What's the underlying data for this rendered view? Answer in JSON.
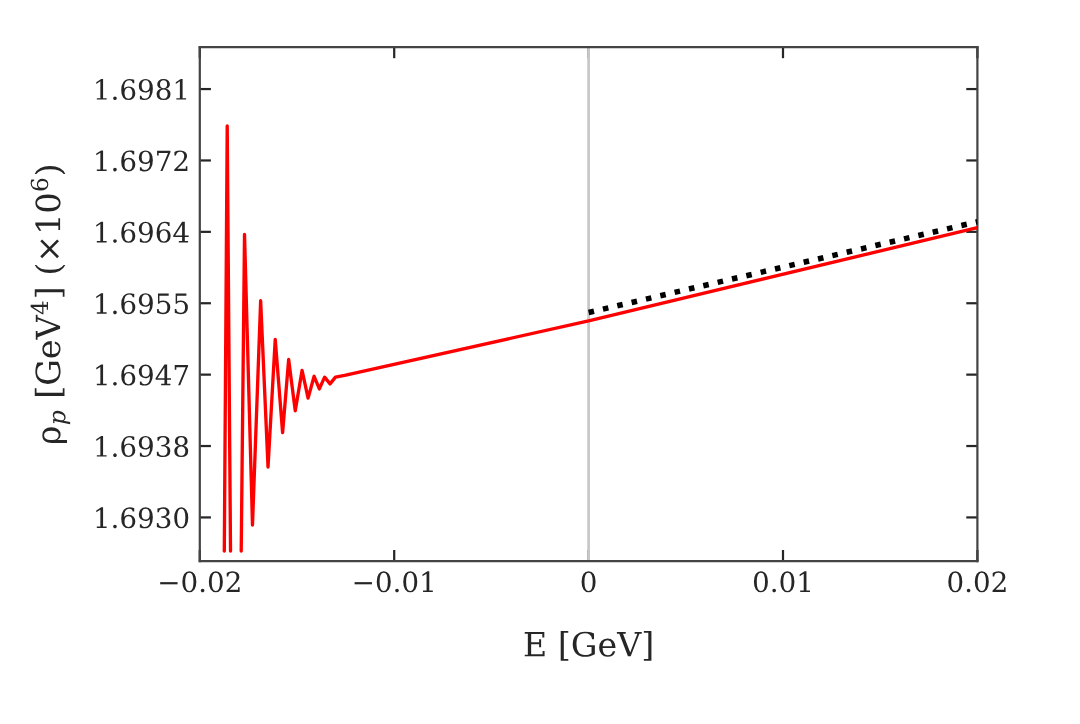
{
  "chart_data": {
    "type": "line",
    "xlabel": "E [GeV]",
    "ylabel": "ρ$_{p}$ [GeV$^{4}$] (×10$^{6}$)",
    "xlim": [
      -0.02,
      0.02
    ],
    "ylim": [
      1.69248,
      1.6986
    ],
    "xticks": [
      {
        "value": -0.02,
        "label": "−0.02"
      },
      {
        "value": -0.01,
        "label": "−0.01"
      },
      0,
      0.01,
      0.02
    ],
    "yticks": [
      {
        "value": 1.693,
        "label": "1.6930"
      },
      {
        "value": 1.69385,
        "label": "1.6938"
      },
      1.6947,
      {
        "value": 1.69555,
        "label": "1.6955"
      },
      1.6964,
      {
        "value": 1.69725,
        "label": "1.6972"
      },
      1.6981
    ],
    "grid": false,
    "legend": false,
    "series": [
      {
        "color": "#ff0000",
        "line_style": "solid",
        "x": [
          -0.01874,
          -0.01859,
          -0.01842,
          -0.01825,
          -0.01787,
          -0.0177,
          -0.01729,
          -0.01687,
          -0.01649,
          -0.01612,
          -0.01574,
          -0.01543,
          -0.01509,
          -0.01474,
          -0.01443,
          -0.01412,
          -0.01385,
          -0.01358,
          -0.0133,
          -0.01302,
          -0.01255,
          0,
          0.02
        ],
        "values": [
          1.6926,
          1.69766,
          1.6926,
          null,
          1.6926,
          1.69637,
          1.69291,
          1.69558,
          1.6936,
          1.69512,
          1.69401,
          1.69488,
          1.69427,
          1.69475,
          1.69442,
          1.69468,
          1.69453,
          1.69467,
          1.69459,
          1.69467,
          1.69469,
          1.69534,
          1.69645
        ]
      },
      {
        "color": "#000000",
        "line_style": "dotted",
        "x": [
          0,
          0.02
        ],
        "values": [
          1.69544,
          1.69652
        ]
      }
    ],
    "ref_lines": [
      {
        "axis": "x",
        "value": 0,
        "color": "#c8c8c8"
      }
    ]
  }
}
